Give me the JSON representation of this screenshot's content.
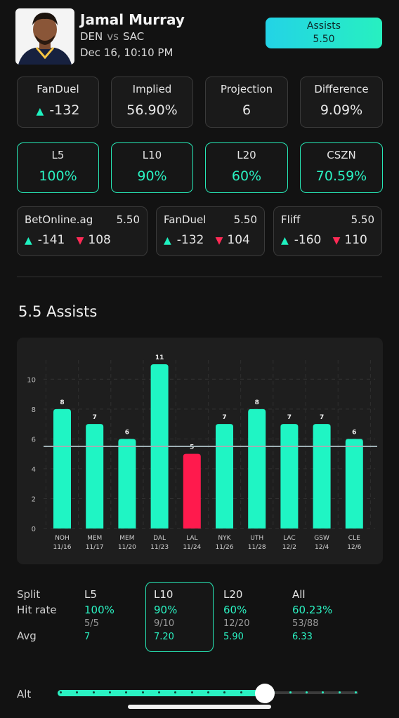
{
  "header": {
    "player_name": "Jamal Murray",
    "team": "DEN",
    "vs": "vs",
    "opponent": "SAC",
    "datetime": "Dec 16, 10:10 PM",
    "prop_label": "Assists",
    "prop_line": "5.50"
  },
  "stats": [
    {
      "label": "FanDuel",
      "value": "-132",
      "icon": "up-triangle-icon"
    },
    {
      "label": "Implied",
      "value": "56.90%"
    },
    {
      "label": "Projection",
      "value": "6"
    },
    {
      "label": "Difference",
      "value": "9.09%"
    }
  ],
  "hit_rates": [
    {
      "label": "L5",
      "value": "100%"
    },
    {
      "label": "L10",
      "value": "90%"
    },
    {
      "label": "L20",
      "value": "60%"
    },
    {
      "label": "CSZN",
      "value": "70.59%"
    }
  ],
  "books": [
    {
      "name": "BetOnline.ag",
      "line": "5.50",
      "over": "-141",
      "under": "108"
    },
    {
      "name": "FanDuel",
      "line": "5.50",
      "over": "-132",
      "under": "104"
    },
    {
      "name": "Fliff",
      "line": "5.50",
      "over": "-160",
      "under": "110"
    }
  ],
  "section_title": "5.5 Assists",
  "chart_data": {
    "type": "bar",
    "categories": [
      "NOH 11/16",
      "MEM 11/17",
      "MEM 11/20",
      "DAL 11/23",
      "LAL 11/24",
      "NYK 11/26",
      "UTH 11/28",
      "LAC 12/2",
      "GSW 12/4",
      "CLE 12/6"
    ],
    "teams": [
      "NOH",
      "MEM",
      "MEM",
      "DAL",
      "LAL",
      "NYK",
      "UTH",
      "LAC",
      "GSW",
      "CLE"
    ],
    "dates": [
      "11/16",
      "11/17",
      "11/20",
      "11/23",
      "11/24",
      "11/26",
      "11/28",
      "12/2",
      "12/4",
      "12/6"
    ],
    "values": [
      8,
      7,
      6,
      11,
      5,
      7,
      8,
      7,
      7,
      6
    ],
    "line": 5.5,
    "ylim": [
      0,
      11
    ],
    "yticks": [
      0,
      2,
      4,
      6,
      8,
      10
    ],
    "hit_color": "#1ff5c4",
    "miss_color": "#ff1a4d",
    "grid": true
  },
  "split": {
    "row_labels": [
      "Split",
      "Hit rate",
      "Avg"
    ],
    "columns": [
      {
        "name": "L5",
        "hit_rate": "100%",
        "fraction": "5/5",
        "avg": "7"
      },
      {
        "name": "L10",
        "hit_rate": "90%",
        "fraction": "9/10",
        "avg": "7.20"
      },
      {
        "name": "L20",
        "hit_rate": "60%",
        "fraction": "12/20",
        "avg": "5.90"
      },
      {
        "name": "All",
        "hit_rate": "60.23%",
        "fraction": "53/88",
        "avg": "6.33"
      }
    ],
    "selected": "L10"
  },
  "alt": {
    "label": "Alt",
    "position": 0.69,
    "steps": 18
  },
  "colors": {
    "accent": "#2af2c2",
    "miss": "#ff1a4d",
    "background": "#121212"
  }
}
